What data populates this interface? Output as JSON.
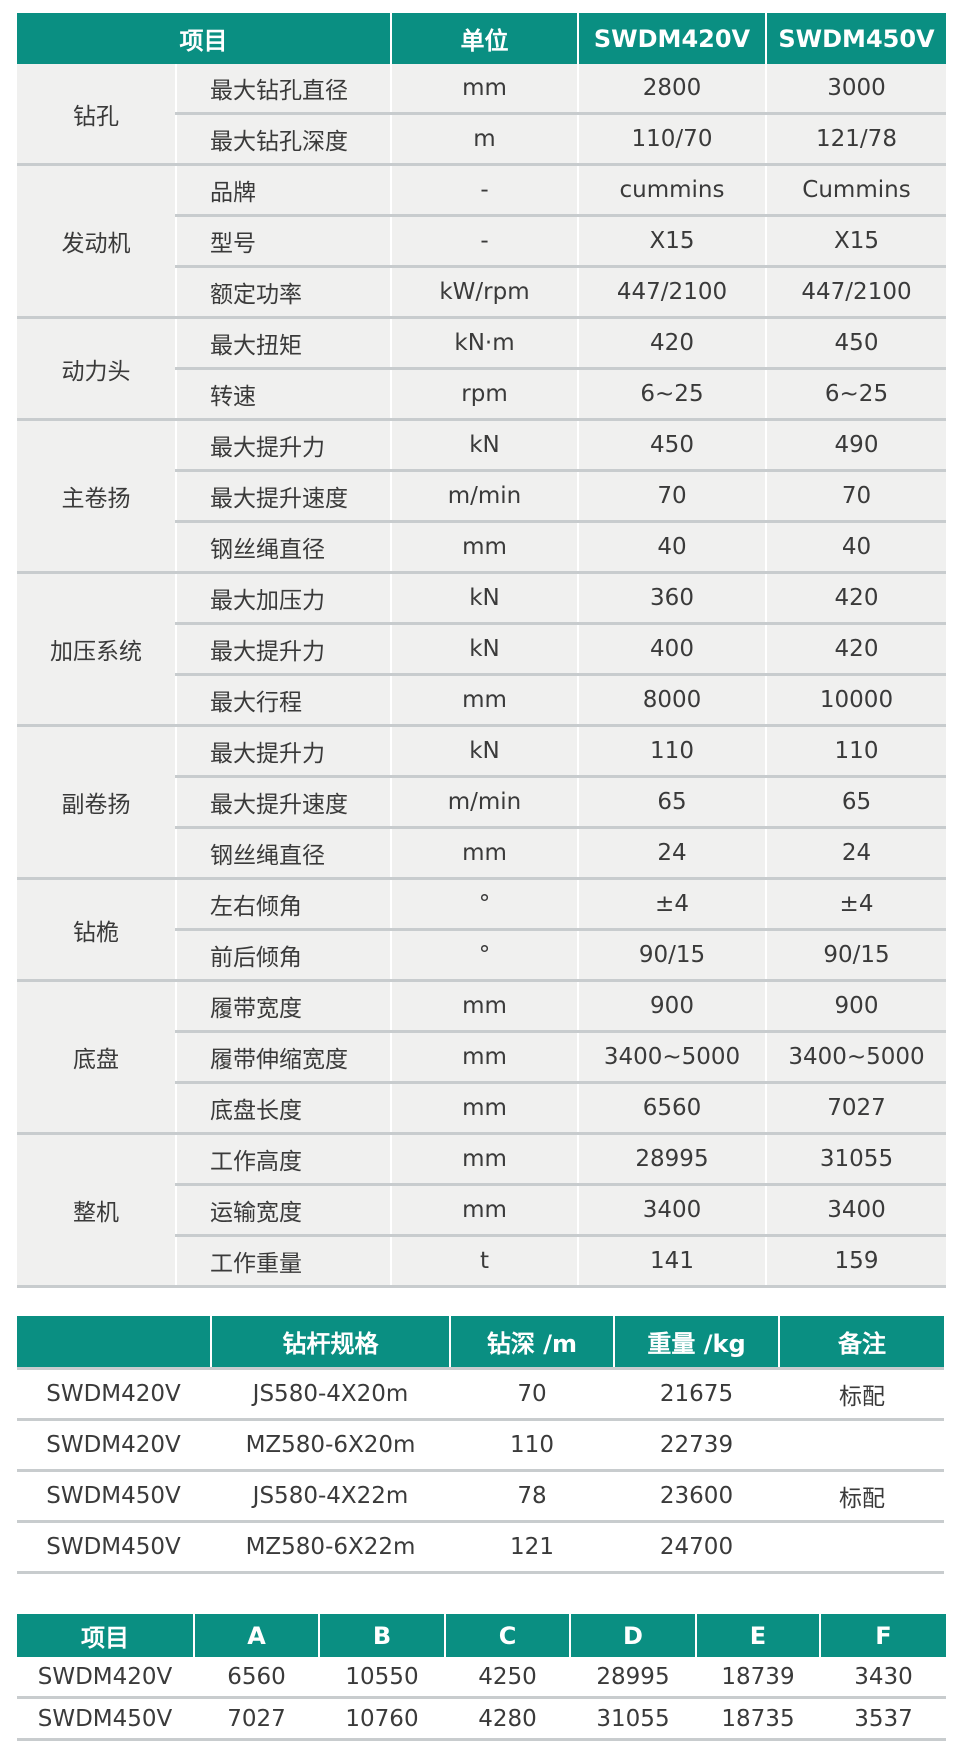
{
  "spec_table": {
    "headers": {
      "item": "项目",
      "unit": "单位",
      "model1": "SWDM420V",
      "model2": "SWDM450V"
    },
    "groups": [
      {
        "name": "钻孔",
        "rows": [
          {
            "item": "最大钻孔直径",
            "unit": "mm",
            "v1": "2800",
            "v2": "3000"
          },
          {
            "item": "最大钻孔深度",
            "unit": "m",
            "v1": "110/70",
            "v2": "121/78"
          }
        ]
      },
      {
        "name": "发动机",
        "rows": [
          {
            "item": "品牌",
            "unit": "-",
            "v1": "cummins",
            "v2": "Cummins"
          },
          {
            "item": "型号",
            "unit": "-",
            "v1": "X15",
            "v2": "X15"
          },
          {
            "item": "额定功率",
            "unit": "kW/rpm",
            "v1": "447/2100",
            "v2": "447/2100"
          }
        ]
      },
      {
        "name": "动力头",
        "rows": [
          {
            "item": "最大扭矩",
            "unit": "kN·m",
            "v1": "420",
            "v2": "450"
          },
          {
            "item": "转速",
            "unit": "rpm",
            "v1": "6~25",
            "v2": "6~25"
          }
        ]
      },
      {
        "name": "主卷扬",
        "rows": [
          {
            "item": "最大提升力",
            "unit": "kN",
            "v1": "450",
            "v2": "490"
          },
          {
            "item": "最大提升速度",
            "unit": "m/min",
            "v1": "70",
            "v2": "70"
          },
          {
            "item": "钢丝绳直径",
            "unit": "mm",
            "v1": "40",
            "v2": "40"
          }
        ]
      },
      {
        "name": "加压系统",
        "rows": [
          {
            "item": "最大加压力",
            "unit": "kN",
            "v1": "360",
            "v2": "420"
          },
          {
            "item": "最大提升力",
            "unit": "kN",
            "v1": "400",
            "v2": "420"
          },
          {
            "item": "最大行程",
            "unit": "mm",
            "v1": "8000",
            "v2": "10000"
          }
        ]
      },
      {
        "name": "副卷扬",
        "rows": [
          {
            "item": "最大提升力",
            "unit": "kN",
            "v1": "110",
            "v2": "110"
          },
          {
            "item": "最大提升速度",
            "unit": "m/min",
            "v1": "65",
            "v2": "65"
          },
          {
            "item": "钢丝绳直径",
            "unit": "mm",
            "v1": "24",
            "v2": "24"
          }
        ]
      },
      {
        "name": "钻桅",
        "rows": [
          {
            "item": "左右倾角",
            "unit": "°",
            "v1": "±4",
            "v2": "±4"
          },
          {
            "item": "前后倾角",
            "unit": "°",
            "v1": "90/15",
            "v2": "90/15"
          }
        ]
      },
      {
        "name": "底盘",
        "rows": [
          {
            "item": "履带宽度",
            "unit": "mm",
            "v1": "900",
            "v2": "900"
          },
          {
            "item": "履带伸缩宽度",
            "unit": "mm",
            "v1": "3400~5000",
            "v2": "3400~5000"
          },
          {
            "item": "底盘长度",
            "unit": "mm",
            "v1": "6560",
            "v2": "7027"
          }
        ]
      },
      {
        "name": "整机",
        "rows": [
          {
            "item": "工作高度",
            "unit": "mm",
            "v1": "28995",
            "v2": "31055"
          },
          {
            "item": "运输宽度",
            "unit": "mm",
            "v1": "3400",
            "v2": "3400"
          },
          {
            "item": "工作重量",
            "unit": "t",
            "v1": "141",
            "v2": "159"
          }
        ]
      }
    ]
  },
  "rod_table": {
    "headers": [
      "",
      "钻杆规格",
      "钻深 /m",
      "重量 /kg",
      "备注"
    ],
    "rows": [
      [
        "SWDM420V",
        "JS580-4X20m",
        "70",
        "21675",
        "标配"
      ],
      [
        "SWDM420V",
        "MZ580-6X20m",
        "110",
        "22739",
        ""
      ],
      [
        "SWDM450V",
        "JS580-4X22m",
        "78",
        "23600",
        "标配"
      ],
      [
        "SWDM450V",
        "MZ580-6X22m",
        "121",
        "24700",
        ""
      ]
    ]
  },
  "dimension_table": {
    "headers": [
      "项目",
      "A",
      "B",
      "C",
      "D",
      "E",
      "F"
    ],
    "rows": [
      [
        "SWDM420V",
        "6560",
        "10550",
        "4250",
        "28995",
        "18739",
        "3430"
      ],
      [
        "SWDM450V",
        "7027",
        "10760",
        "4280",
        "31055",
        "18735",
        "3537"
      ]
    ]
  },
  "colors": {
    "header_bg": "#0a8f82",
    "body_bg": "#f0f0ef",
    "rule": "#c8ccce"
  }
}
